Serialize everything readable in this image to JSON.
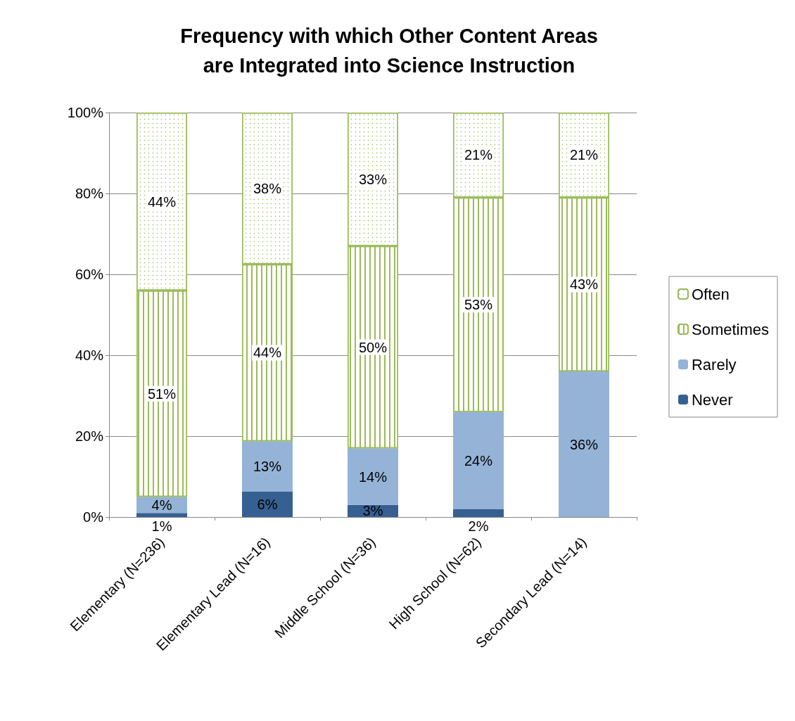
{
  "chart_data": {
    "type": "bar",
    "title": "Frequency with which Other Content Areas\nare Integrated into Science Instruction",
    "stacked": true,
    "categories": [
      "Elementary (N=236)",
      "Elementary Lead (N=16)",
      "Middle School (N=36)",
      "High School (N=62)",
      "Secondary Lead (N=14)"
    ],
    "series": [
      {
        "name": "Never",
        "color": "#376092",
        "values": [
          1,
          6.25,
          3,
          2,
          null
        ],
        "value_labels": [
          "1%",
          "6%",
          "3%",
          "2%",
          null
        ]
      },
      {
        "name": "Rarely",
        "color": "#95b3d7",
        "values": [
          4,
          12.5,
          14,
          24,
          36
        ],
        "value_labels": [
          "4%",
          "13%",
          "14%",
          "24%",
          "36%"
        ]
      },
      {
        "name": "Sometimes",
        "color": "#9bbb59",
        "values": [
          51,
          43.75,
          50,
          53,
          43
        ],
        "value_labels": [
          "51%",
          "44%",
          "50%",
          "53%",
          "43%"
        ]
      },
      {
        "name": "Often",
        "color": "#9bbb59",
        "values": [
          44,
          37.5,
          33,
          21,
          21
        ],
        "value_labels": [
          "44%",
          "38%",
          "33%",
          "21%",
          "21%"
        ]
      }
    ],
    "ylim": [
      0,
      100
    ],
    "yticks": [
      {
        "value": 0,
        "label": "0%"
      },
      {
        "value": 20,
        "label": "20%"
      },
      {
        "value": 40,
        "label": "40%"
      },
      {
        "value": 60,
        "label": "60%"
      },
      {
        "value": 80,
        "label": "80%"
      },
      {
        "value": 100,
        "label": "100%"
      }
    ],
    "grid": "y",
    "legend": "right"
  }
}
